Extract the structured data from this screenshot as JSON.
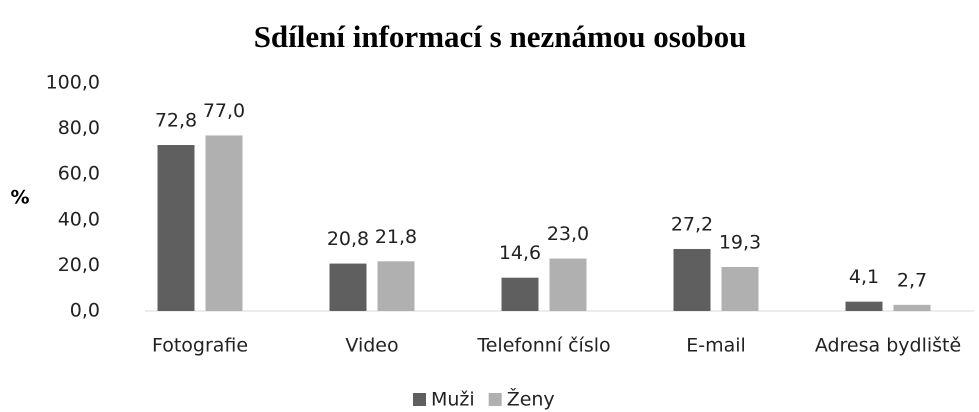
{
  "chart_data": {
    "type": "bar",
    "title": "Sdílení informací s neznámou osobou",
    "ylabel": "%",
    "categories": [
      "Fotografie",
      "Video",
      "Telefonní číslo",
      "E-mail",
      "Adresa bydliště"
    ],
    "series": [
      {
        "name": "Muži",
        "color": "#5f5f5f",
        "values": [
          72.8,
          20.8,
          14.6,
          27.2,
          4.1
        ],
        "value_labels": [
          "72,8",
          "20,8",
          "14,6",
          "27,2",
          "4,1"
        ]
      },
      {
        "name": "Ženy",
        "color": "#b0b0b0",
        "values": [
          77.0,
          21.8,
          23.0,
          19.3,
          2.7
        ],
        "value_labels": [
          "77,0",
          "21,8",
          "23,0",
          "19,3",
          "2,7"
        ]
      }
    ],
    "ylim": [
      0,
      100
    ],
    "yticks": [
      {
        "value": 0,
        "label": "0,0"
      },
      {
        "value": 20,
        "label": "20,0"
      },
      {
        "value": 40,
        "label": "40,0"
      },
      {
        "value": 60,
        "label": "60,0"
      },
      {
        "value": 80,
        "label": "80,0"
      },
      {
        "value": 100,
        "label": "100,0"
      }
    ],
    "grid": false,
    "legend": "bottom"
  }
}
